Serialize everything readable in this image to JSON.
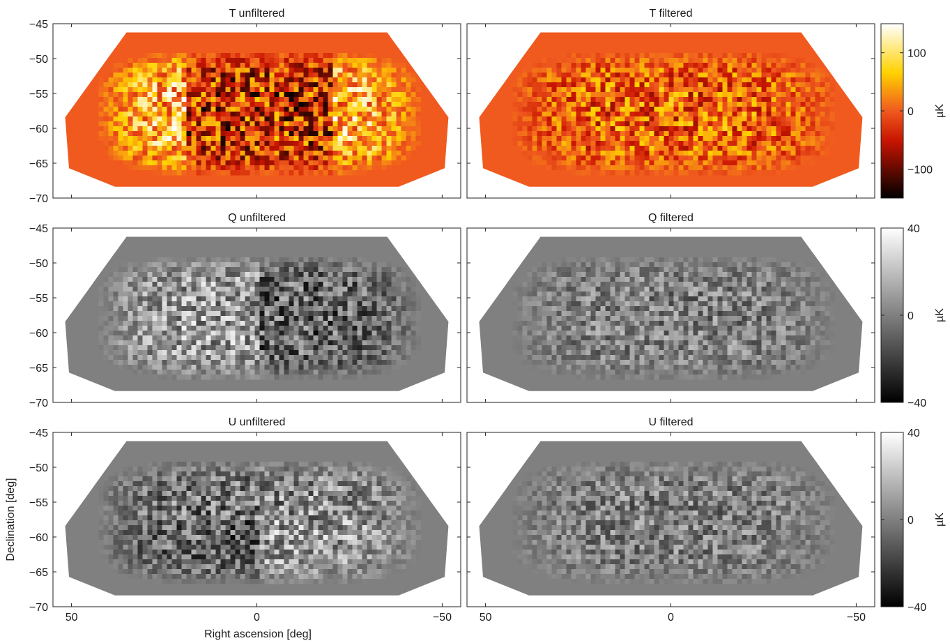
{
  "figure": {
    "xlabel": "Right ascension [deg]",
    "ylabel": "Declination [deg]"
  },
  "chart_data": [
    {
      "type": "heatmap",
      "title": "T unfiltered",
      "map": "T",
      "filtered": false,
      "xlim": [
        55,
        -55
      ],
      "ylim": [
        -70,
        -45
      ],
      "xticks": [
        50,
        0,
        -50
      ],
      "yticks": [
        -45,
        -50,
        -55,
        -60,
        -65,
        -70
      ],
      "colormap": "hot",
      "clim": [
        -150,
        150
      ],
      "x_tick_labels_shown": false
    },
    {
      "type": "heatmap",
      "title": "T filtered",
      "map": "T",
      "filtered": true,
      "xlim": [
        55,
        -55
      ],
      "ylim": [
        -70,
        -45
      ],
      "xticks": [
        50,
        0,
        -50
      ],
      "yticks": [
        -45,
        -50,
        -55,
        -60,
        -65,
        -70
      ],
      "colormap": "hot",
      "clim": [
        -150,
        150
      ],
      "x_tick_labels_shown": false,
      "y_tick_labels_shown": false
    },
    {
      "type": "heatmap",
      "title": "Q unfiltered",
      "map": "Q",
      "filtered": false,
      "xlim": [
        55,
        -55
      ],
      "ylim": [
        -70,
        -45
      ],
      "xticks": [
        50,
        0,
        -50
      ],
      "yticks": [
        -45,
        -50,
        -55,
        -60,
        -65,
        -70
      ],
      "colormap": "gray",
      "clim": [
        -40,
        40
      ],
      "x_tick_labels_shown": false
    },
    {
      "type": "heatmap",
      "title": "Q filtered",
      "map": "Q",
      "filtered": true,
      "xlim": [
        55,
        -55
      ],
      "ylim": [
        -70,
        -45
      ],
      "xticks": [
        50,
        0,
        -50
      ],
      "yticks": [
        -45,
        -50,
        -55,
        -60,
        -65,
        -70
      ],
      "colormap": "gray",
      "clim": [
        -40,
        40
      ],
      "x_tick_labels_shown": false,
      "y_tick_labels_shown": false
    },
    {
      "type": "heatmap",
      "title": "U unfiltered",
      "map": "U",
      "filtered": false,
      "xlim": [
        55,
        -55
      ],
      "ylim": [
        -70,
        -45
      ],
      "xticks": [
        50,
        0,
        -50
      ],
      "yticks": [
        -45,
        -50,
        -55,
        -60,
        -65,
        -70
      ],
      "colormap": "gray",
      "clim": [
        -40,
        40
      ],
      "x_tick_labels_shown": true
    },
    {
      "type": "heatmap",
      "title": "U filtered",
      "map": "U",
      "filtered": true,
      "xlim": [
        55,
        -55
      ],
      "ylim": [
        -70,
        -45
      ],
      "xticks": [
        50,
        0,
        -50
      ],
      "yticks": [
        -45,
        -50,
        -55,
        -60,
        -65,
        -70
      ],
      "colormap": "gray",
      "clim": [
        -40,
        40
      ],
      "x_tick_labels_shown": true,
      "y_tick_labels_shown": false
    }
  ],
  "colorbars": [
    {
      "row": "T",
      "colormap": "hot",
      "range": [
        -150,
        150
      ],
      "ticks": [
        100,
        0,
        -100
      ],
      "label": "µK"
    },
    {
      "row": "Q",
      "colormap": "gray",
      "range": [
        -40,
        40
      ],
      "ticks": [
        40,
        0,
        -40
      ],
      "label": "µK"
    },
    {
      "row": "U",
      "colormap": "gray",
      "range": [
        -40,
        40
      ],
      "ticks": [
        40,
        0,
        -40
      ],
      "label": "µK"
    }
  ],
  "tick_text": {
    "x": [
      "50",
      "0",
      "−50"
    ],
    "y": [
      "−45",
      "−50",
      "−55",
      "−60",
      "−65",
      "−70"
    ],
    "cb_T": [
      "100",
      "0",
      "−100"
    ],
    "cb_QU": [
      "40",
      "0",
      "−40"
    ]
  }
}
